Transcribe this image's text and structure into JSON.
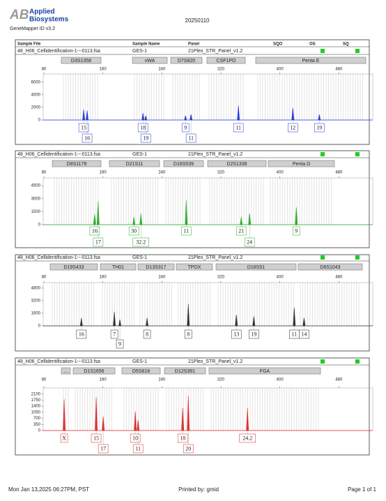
{
  "header": {
    "logo": "AB",
    "brand": [
      "Applied",
      "Biosystems"
    ],
    "software": "GeneMapper ID v3.2",
    "date": "20250110"
  },
  "table": {
    "columns": [
      "Sample File",
      "Sample Name",
      "Panel",
      "SQO",
      "OS",
      "SQ"
    ]
  },
  "panels": [
    {
      "sample_file": "48_H06_Cellidentification-1---0113.fsa",
      "sample_name": "GES-1",
      "panel": "21Plex_STR_Panel_v1.2",
      "color": "#2b3fd8",
      "markers": [
        "D3S1358",
        "vWA",
        "D7S820",
        "CSF1PO",
        "Penta E"
      ],
      "xlim": [
        79,
        526
      ],
      "xticks": [
        80,
        160,
        240,
        320,
        400,
        480
      ],
      "ylim": [
        0,
        7300
      ],
      "yticks": [
        0,
        2000,
        4000,
        6000
      ],
      "peaks": [
        {
          "bp": 133.9,
          "height": 1650,
          "allele": "15"
        },
        {
          "bp": 138.6,
          "height": 1500,
          "allele": "16"
        },
        {
          "bp": 214.3,
          "height": 1100,
          "allele": "18"
        },
        {
          "bp": 218.1,
          "height": 700,
          "allele": "19"
        },
        {
          "bp": 272,
          "height": 700,
          "allele": "9"
        },
        {
          "bp": 279.5,
          "height": 900,
          "allele": "11"
        },
        {
          "bp": 343.8,
          "height": 2300,
          "allele": "11"
        },
        {
          "bp": 417.6,
          "height": 1900,
          "allele": "12"
        },
        {
          "bp": 453.5,
          "height": 900,
          "allele": "19"
        }
      ]
    },
    {
      "sample_file": "48_H06_Cellidentification-1---0113.fsa",
      "sample_name": "GES-1",
      "panel": "21Plex_STR_Panel_v1.2",
      "color": "#2fae2f",
      "markers": [
        "D8S1179",
        "D21S11",
        "D16S539",
        "D2S1338",
        "Penta D"
      ],
      "xlim": [
        79,
        526
      ],
      "xticks": [
        80,
        160,
        240,
        320,
        400,
        480
      ],
      "ylim": [
        0,
        5400
      ],
      "yticks": [
        0,
        1500,
        3000,
        4500
      ],
      "peaks": [
        {
          "bp": 148.8,
          "height": 1200,
          "allele": "16"
        },
        {
          "bp": 153.5,
          "height": 2700,
          "allele": "17"
        },
        {
          "bp": 202,
          "height": 900,
          "allele": "30"
        },
        {
          "bp": 211.5,
          "height": 1300,
          "allele": "32.2"
        },
        {
          "bp": 273,
          "height": 2800,
          "allele": "11"
        },
        {
          "bp": 347.6,
          "height": 900,
          "allele": "21"
        },
        {
          "bp": 358.9,
          "height": 1300,
          "allele": "24"
        },
        {
          "bp": 422.3,
          "height": 2000,
          "allele": "9"
        }
      ]
    },
    {
      "sample_file": "48_H06_Cellidentification-1---0113.fsa",
      "sample_name": "GES-1",
      "panel": "21Plex_STR_Panel_v1.2",
      "color": "#333333",
      "markers": [
        "D19S433",
        "TH01",
        "D13S317",
        "TPOX",
        "D18S51",
        "D6S1043"
      ],
      "xlim": [
        79,
        526
      ],
      "xticks": [
        80,
        160,
        240,
        320,
        400,
        480
      ],
      "ylim": [
        0,
        5500
      ],
      "yticks": [
        0,
        1600,
        3200,
        4800
      ],
      "peaks": [
        {
          "bp": 130.8,
          "height": 1000,
          "allele": "16"
        },
        {
          "bp": 175.5,
          "height": 1800,
          "allele": "7"
        },
        {
          "bp": 183,
          "height": 800,
          "allele": "9"
        },
        {
          "bp": 219.9,
          "height": 1000,
          "allele": "8"
        },
        {
          "bp": 275.8,
          "height": 2800,
          "allele": "8"
        },
        {
          "bp": 341,
          "height": 1400,
          "allele": "13"
        },
        {
          "bp": 364.7,
          "height": 1200,
          "allele": "19"
        },
        {
          "bp": 419.5,
          "height": 2300,
          "allele": "11"
        },
        {
          "bp": 432.8,
          "height": 1000,
          "allele": "14"
        }
      ]
    },
    {
      "sample_file": "48_H06_Cellidentification-1---0113.fsa",
      "sample_name": "GES-1",
      "panel": "21Plex_STR_Panel_v1.2",
      "color": "#e0302f",
      "markers": [
        "...",
        "D1S1656",
        "D5S818",
        "D12S391",
        "FGA"
      ],
      "xlim": [
        79,
        526
      ],
      "xticks": [
        80,
        160,
        240,
        320,
        400,
        480
      ],
      "ylim": [
        0,
        2450
      ],
      "yticks": [
        0,
        350,
        700,
        1050,
        1400,
        1750,
        2100
      ],
      "peaks": [
        {
          "bp": 107.4,
          "height": 1800,
          "allele": "X"
        },
        {
          "bp": 150.9,
          "height": 1900,
          "allele": "15"
        },
        {
          "bp": 160.4,
          "height": 800,
          "allele": "17"
        },
        {
          "bp": 203.9,
          "height": 1100,
          "allele": "10"
        },
        {
          "bp": 207.7,
          "height": 600,
          "allele": "11"
        },
        {
          "bp": 268.2,
          "height": 1300,
          "allele": "18"
        },
        {
          "bp": 275.8,
          "height": 2000,
          "allele": "20"
        },
        {
          "bp": 356.1,
          "height": 1300,
          "allele": "24.2"
        }
      ]
    }
  ],
  "footer": {
    "printed_at": "Mon Jan 13,2025 06:27PM, PST",
    "printed_by": "Printed by: gmid",
    "page": "Page 1 of 1"
  }
}
